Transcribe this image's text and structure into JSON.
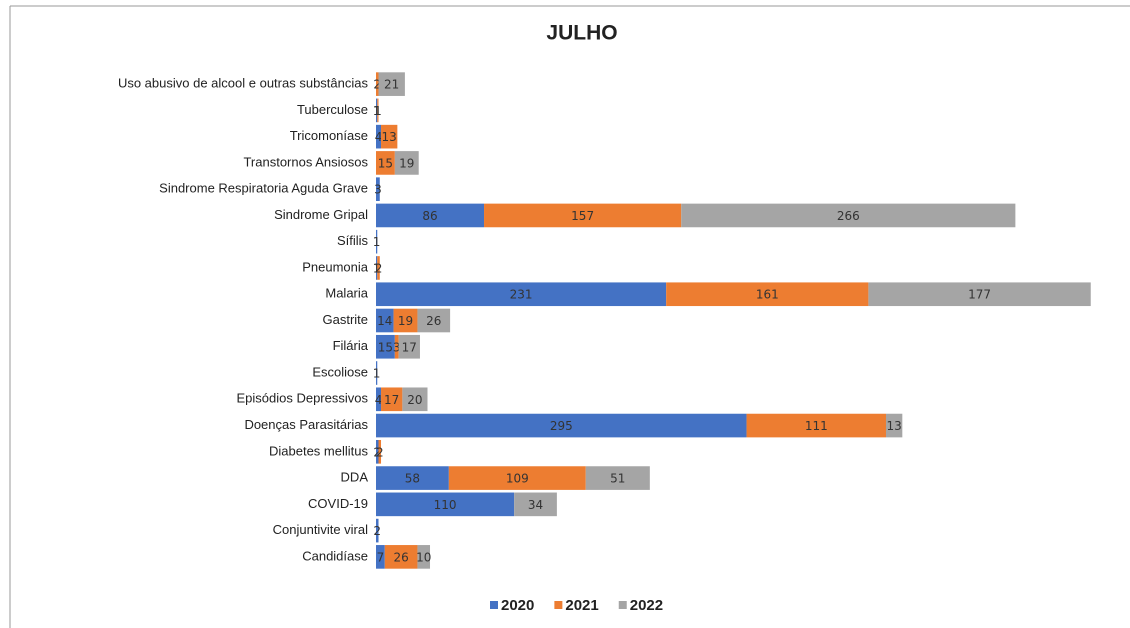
{
  "chart_data": {
    "type": "stacked-barh",
    "title": "JULHO",
    "categories": [
      "Uso abusivo de alcool e outras substâncias",
      "Tuberculose",
      "Tricomoníase",
      "Transtornos Ansiosos",
      "Sindrome Respiratoria Aguda Grave",
      "Sindrome Gripal",
      "Sífilis",
      "Pneumonia",
      "Malaria",
      "Gastrite",
      "Filária",
      "Escoliose",
      "Episódios Depressivos",
      "Doenças Parasitárias",
      "Diabetes mellitus",
      "DDA",
      "COVID-19",
      "Conjuntivite viral",
      "Candidíase"
    ],
    "series": [
      {
        "name": "2020",
        "color": "#4472c4",
        "values": [
          null,
          1,
          4,
          null,
          3,
          86,
          1,
          1,
          231,
          14,
          15,
          1,
          4,
          295,
          2,
          58,
          110,
          2,
          7
        ]
      },
      {
        "name": "2021",
        "color": "#ed7d31",
        "values": [
          2,
          1,
          13,
          15,
          null,
          157,
          null,
          2,
          161,
          19,
          3,
          null,
          17,
          111,
          2,
          109,
          null,
          null,
          26
        ]
      },
      {
        "name": "2022",
        "color": "#a5a5a5",
        "values": [
          21,
          null,
          null,
          19,
          null,
          266,
          null,
          null,
          177,
          26,
          17,
          null,
          20,
          13,
          null,
          51,
          34,
          null,
          10
        ]
      }
    ],
    "xlim": [
      0,
      570
    ],
    "legend": "bottom"
  }
}
